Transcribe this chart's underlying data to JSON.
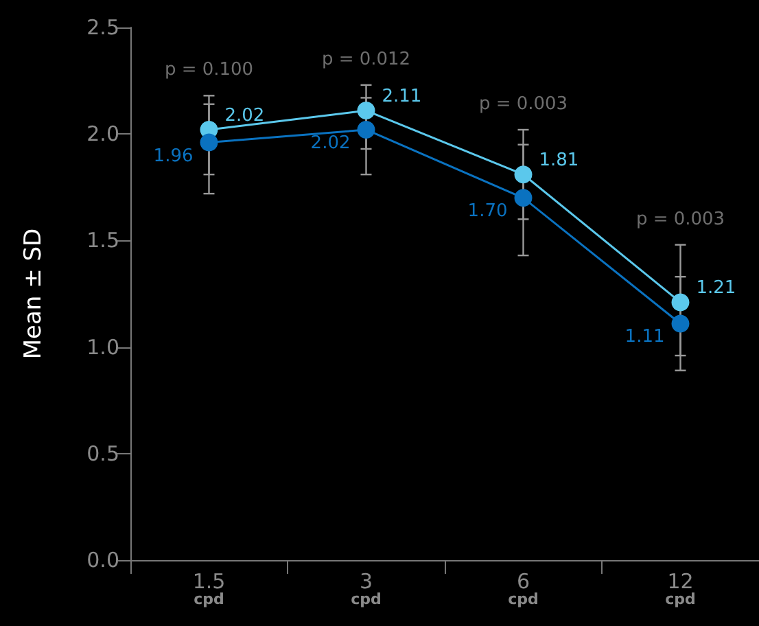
{
  "chart_data": {
    "type": "line",
    "ylabel": "Mean ± SD",
    "categories": [
      "1.5\ncpd",
      "3\ncpd",
      "6\ncpd",
      "12\ncpd"
    ],
    "series": [
      {
        "color": "#5bc8ec",
        "values": [
          2.02,
          2.11,
          1.81,
          1.21
        ],
        "value_labels": [
          "2.02",
          "2.11",
          "1.81",
          "1.21"
        ],
        "errors": [
          [
            1.81,
            2.18
          ],
          [
            1.93,
            2.23
          ],
          [
            1.6,
            2.02
          ],
          [
            0.96,
            1.48
          ]
        ]
      },
      {
        "color": "#0a72c0",
        "values": [
          1.96,
          2.02,
          1.7,
          1.11
        ],
        "value_labels": [
          "1.96",
          "2.02",
          "1.70",
          "1.11"
        ],
        "errors": [
          [
            1.72,
            2.14
          ],
          [
            1.81,
            2.17
          ],
          [
            1.43,
            1.95
          ],
          [
            0.89,
            1.33
          ]
        ]
      }
    ],
    "ylim": [
      0,
      2.5
    ],
    "yticks": [
      {
        "value": 0,
        "label": "0.0"
      },
      {
        "value": 0.5,
        "label": "0.5"
      },
      {
        "value": 1,
        "label": "1.0"
      },
      {
        "value": 1.5,
        "label": "1.5"
      },
      {
        "value": 2,
        "label": "2.0"
      },
      {
        "value": 2.5,
        "label": "2.5"
      }
    ],
    "grid": false,
    "marker": "circle",
    "line_style": "solid",
    "annotations": [
      "p = 0.100",
      "p = 0.012",
      "p = 0.003",
      "p = 0.003"
    ]
  }
}
